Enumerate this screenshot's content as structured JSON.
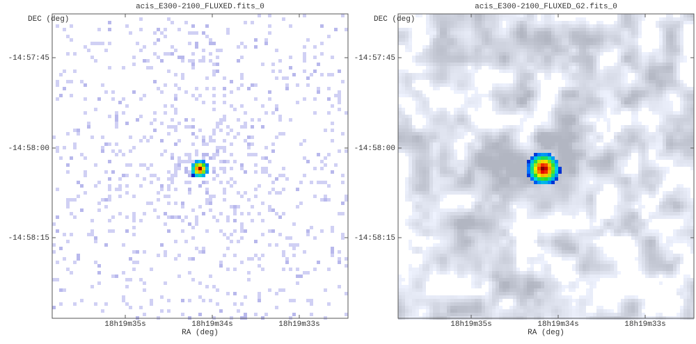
{
  "panels": [
    {
      "title": "acis_E300-2100_FLUXED.fits_0",
      "x_label": "RA (deg)",
      "y_label": "DEC (deg)",
      "x_ticks": [
        "18h19m35s",
        "18h19m34s",
        "18h19m33s"
      ],
      "y_ticks": [
        "-14:57:45",
        "-14:58:00",
        "-14:58:15"
      ]
    },
    {
      "title": "acis_E300-2100_FLUXED_G2.fits_0",
      "x_label": "RA (deg)",
      "y_label": "DEC (deg)",
      "x_ticks": [
        "18h19m35s",
        "18h19m34s",
        "18h19m33s"
      ],
      "y_ticks": [
        "-14:57:45",
        "-14:58:00",
        "-14:58:15"
      ]
    }
  ]
}
